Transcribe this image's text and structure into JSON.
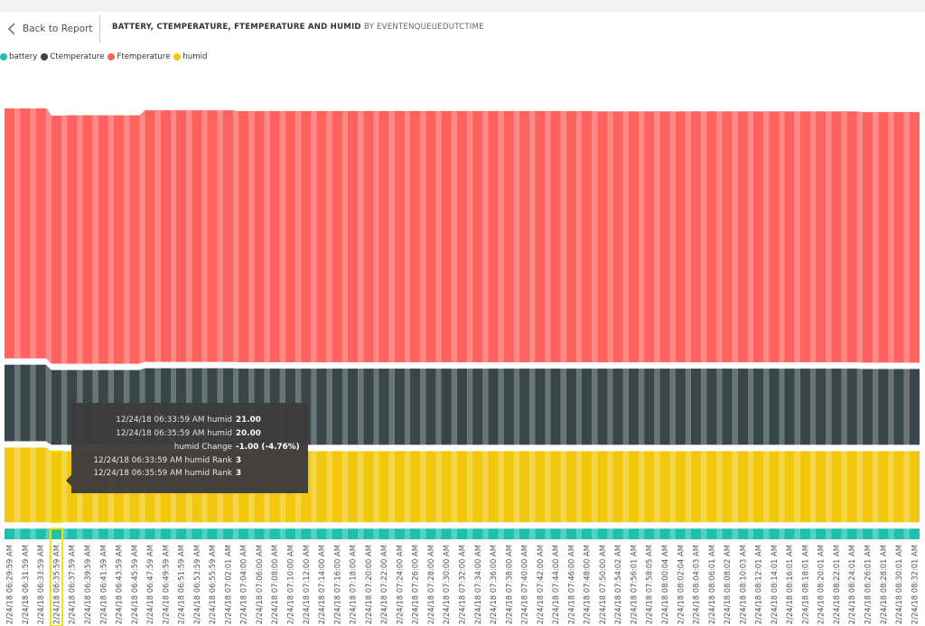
{
  "header": {
    "back_label": "Back to Report",
    "title": "BATTERY, CTEMPERATURE, FTEMPERATURE AND HUMID",
    "subtitle": "BY EVENTENQUEUEDUTCTIME"
  },
  "colors": {
    "battery": "#1fbfae",
    "Ctemperature": "#374649",
    "Ftemperature": "#fd625e",
    "humid": "#f2c80f",
    "highlight": "#f2e400"
  },
  "legend": [
    {
      "name": "battery",
      "color": "#1fbfae"
    },
    {
      "name": "Ctemperature",
      "color": "#374649"
    },
    {
      "name": "Ftemperature",
      "color": "#fd625e"
    },
    {
      "name": "humid",
      "color": "#f2c80f"
    }
  ],
  "tooltip": {
    "rows": [
      {
        "label": "12/24/18 06:33:59 AM humid",
        "value": "21.00"
      },
      {
        "label": "12/24/18 06:35:59 AM humid",
        "value": "20.00"
      },
      {
        "label": "humid Change",
        "value": "-1.00 (-4.76%)"
      },
      {
        "label": "12/24/18 06:33:59 AM humid Rank",
        "value": "3"
      },
      {
        "label": "12/24/18 06:35:59 AM humid Rank",
        "value": "3"
      }
    ]
  },
  "chart_data": {
    "type": "ribbon",
    "x_labels": [
      "2/24/18 06:29:59 AM",
      "2/24/18 06:31:59 AM",
      "2/24/18 06:33:59 AM",
      "2/24/18 06:35:59 AM",
      "2/24/18 06:37:59 AM",
      "2/24/18 06:39:59 AM",
      "2/24/18 06:41:59 AM",
      "2/24/18 06:43:59 AM",
      "2/24/18 06:45:59 AM",
      "2/24/18 06:47:59 AM",
      "2/24/18 06:49:59 AM",
      "2/24/18 06:51:59 AM",
      "2/24/18 06:53:59 AM",
      "2/24/18 06:55:59 AM",
      "2/24/18 07:02:01 AM",
      "2/24/18 07:04:00 AM",
      "2/24/18 07:06:00 AM",
      "2/24/18 07:08:00 AM",
      "2/24/18 07:10:00 AM",
      "2/24/18 07:12:00 AM",
      "2/24/18 07:14:00 AM",
      "2/24/18 07:16:00 AM",
      "2/24/18 07:18:00 AM",
      "2/24/18 07:20:00 AM",
      "2/24/18 07:22:00 AM",
      "2/24/18 07:24:00 AM",
      "2/24/18 07:26:00 AM",
      "2/24/18 07:28:00 AM",
      "2/24/18 07:30:00 AM",
      "2/24/18 07:32:00 AM",
      "2/24/18 07:34:00 AM",
      "2/24/18 07:36:00 AM",
      "2/24/18 07:38:00 AM",
      "2/24/18 07:40:00 AM",
      "2/24/18 07:42:00 AM",
      "2/24/18 07:44:00 AM",
      "2/24/18 07:46:00 AM",
      "2/24/18 07:48:00 AM",
      "2/24/18 07:50:00 AM",
      "2/24/18 07:54:02 AM",
      "2/24/18 07:56:01 AM",
      "2/24/18 07:58:05 AM",
      "2/24/18 08:00:04 AM",
      "2/24/18 08:02:04 AM",
      "2/24/18 08:04:03 AM",
      "2/24/18 08:06:01 AM",
      "2/24/18 08:08:02 AM",
      "2/24/18 08:10:03 AM",
      "2/24/18 08:12:01 AM",
      "2/24/18 08:14:01 AM",
      "2/24/18 08:16:01 AM",
      "2/24/18 08:18:01 AM",
      "2/24/18 08:20:01 AM",
      "2/24/18 08:22:01 AM",
      "2/24/18 08:24:01 AM",
      "2/24/18 08:26:01 AM",
      "2/24/18 08:28:01 AM",
      "2/24/18 08:30:01 AM",
      "2/24/18 08:32:01 AM"
    ],
    "series_order_bottom_to_top": [
      "battery",
      "humid",
      "Ctemperature",
      "Ftemperature"
    ],
    "series": [
      {
        "name": "Ftemperature",
        "values": [
          70.7,
          70.7,
          70.7,
          69.7,
          69.8,
          69.8,
          69.8,
          69.8,
          69.8,
          70.7,
          70.7,
          70.7,
          70.7,
          70.7,
          70.7,
          70.6,
          70.6,
          70.6,
          70.6,
          70.6,
          70.6,
          70.6,
          70.6,
          70.6,
          70.6,
          70.6,
          70.6,
          70.6,
          70.6,
          70.6,
          70.6,
          70.6,
          70.6,
          70.6,
          70.6,
          70.6,
          70.6,
          70.6,
          70.5,
          70.5,
          70.5,
          70.5,
          70.5,
          70.5,
          70.5,
          70.5,
          70.5,
          70.5,
          70.5,
          70.5,
          70.5,
          70.5,
          70.5,
          70.5,
          70.5,
          70.4,
          70.4,
          70.4,
          70.4
        ]
      },
      {
        "name": "Ctemperature",
        "values": [
          21.5,
          21.5,
          21.5,
          21.0,
          21.0,
          21.0,
          21.0,
          21.0,
          21.0,
          21.5,
          21.5,
          21.5,
          21.5,
          21.5,
          21.5,
          21.4,
          21.4,
          21.4,
          21.4,
          21.4,
          21.4,
          21.4,
          21.4,
          21.4,
          21.4,
          21.4,
          21.4,
          21.4,
          21.4,
          21.4,
          21.4,
          21.4,
          21.4,
          21.4,
          21.4,
          21.4,
          21.4,
          21.4,
          21.4,
          21.4,
          21.4,
          21.4,
          21.4,
          21.4,
          21.4,
          21.4,
          21.4,
          21.4,
          21.4,
          21.4,
          21.4,
          21.4,
          21.4,
          21.4,
          21.4,
          21.3,
          21.3,
          21.3,
          21.3
        ]
      },
      {
        "name": "humid",
        "values": [
          21,
          21,
          21,
          20,
          20,
          20,
          20,
          20,
          20,
          20,
          20,
          20,
          20,
          20,
          20,
          20,
          20,
          20,
          20,
          20,
          20,
          20,
          20,
          20,
          20,
          20,
          20,
          20,
          20,
          20,
          20,
          20,
          20,
          20,
          20,
          20,
          20,
          20,
          20,
          20,
          20,
          20,
          20,
          20,
          20,
          20,
          20,
          20,
          20,
          20,
          20,
          20,
          20,
          20,
          20,
          20,
          20,
          20,
          20
        ]
      },
      {
        "name": "battery",
        "values": [
          3,
          3,
          3,
          3,
          3,
          3,
          3,
          3,
          3,
          3,
          3,
          3,
          3,
          3,
          3,
          3,
          3,
          3,
          3,
          3,
          3,
          3,
          3,
          3,
          3,
          3,
          3,
          3,
          3,
          3,
          3,
          3,
          3,
          3,
          3,
          3,
          3,
          3,
          3,
          3,
          3,
          3,
          3,
          3,
          3,
          3,
          3,
          3,
          3,
          3,
          3,
          3,
          3,
          3,
          3,
          3,
          3,
          3,
          3
        ]
      }
    ],
    "highlighted_index": 3,
    "legend_position": "top-left"
  }
}
